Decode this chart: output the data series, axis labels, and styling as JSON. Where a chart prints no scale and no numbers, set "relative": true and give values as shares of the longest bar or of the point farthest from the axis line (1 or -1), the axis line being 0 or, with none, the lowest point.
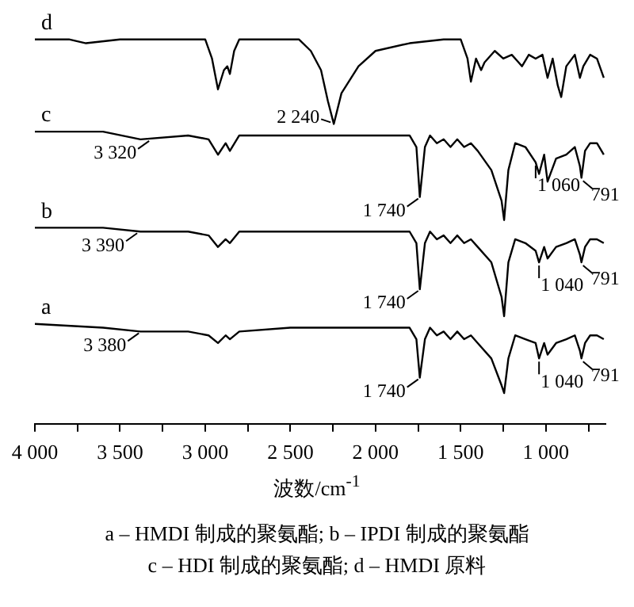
{
  "chart_data": {
    "type": "line",
    "relative": true,
    "xlabel": "波数/cm$^{-1}$",
    "xlim": [
      4000,
      650
    ],
    "xticks": [
      {
        "value": 4000,
        "label": "4 000"
      },
      {
        "value": 3750,
        "label": null
      },
      {
        "value": 3500,
        "label": "3 500"
      },
      {
        "value": 3250,
        "label": null
      },
      {
        "value": 3000,
        "label": "3 000"
      },
      {
        "value": 2750,
        "label": null
      },
      {
        "value": 2500,
        "label": "2 500"
      },
      {
        "value": 2250,
        "label": null
      },
      {
        "value": 2000,
        "label": "2 000"
      },
      {
        "value": 1750,
        "label": null
      },
      {
        "value": 1500,
        "label": "1 500"
      },
      {
        "value": 1250,
        "label": null
      },
      {
        "value": 1000,
        "label": "1 000"
      },
      {
        "value": 750,
        "label": null
      }
    ],
    "x": [
      4000,
      3600,
      3380,
      3100,
      2980,
      2925,
      2880,
      2855,
      2800,
      2500,
      2000,
      1800,
      1760,
      1740,
      1710,
      1680,
      1640,
      1600,
      1560,
      1520,
      1480,
      1440,
      1400,
      1320,
      1260,
      1245,
      1220,
      1180,
      1120,
      1060,
      1040,
      1010,
      990,
      940,
      880,
      830,
      800,
      791,
      770,
      740,
      700,
      660
    ],
    "grid": false,
    "legend": false,
    "marker": "none",
    "line_style": "solid",
    "series": [
      {
        "name": "d",
        "color": "#000000",
        "x": [
          4000,
          3800,
          3700,
          3500,
          3000,
          2960,
          2925,
          2890,
          2870,
          2855,
          2830,
          2800,
          2600,
          2450,
          2380,
          2320,
          2280,
          2245,
          2200,
          2100,
          2000,
          1800,
          1600,
          1500,
          1460,
          1440,
          1410,
          1380,
          1360,
          1300,
          1250,
          1200,
          1160,
          1140,
          1100,
          1060,
          1020,
          990,
          960,
          930,
          910,
          880,
          830,
          800,
          780,
          740,
          700,
          660
        ],
        "values": [
          1,
          1,
          0.99,
          1,
          1,
          0.95,
          0.87,
          0.92,
          0.93,
          0.91,
          0.97,
          1,
          1,
          1,
          0.97,
          0.92,
          0.84,
          0.78,
          0.86,
          0.93,
          0.97,
          0.99,
          1,
          1,
          0.95,
          0.89,
          0.95,
          0.92,
          0.94,
          0.97,
          0.95,
          0.96,
          0.94,
          0.93,
          0.96,
          0.95,
          0.96,
          0.9,
          0.95,
          0.88,
          0.85,
          0.93,
          0.96,
          0.9,
          0.93,
          0.96,
          0.95,
          0.9
        ]
      },
      {
        "name": "c",
        "color": "#000000",
        "values": [
          0.76,
          0.76,
          0.74,
          0.75,
          0.74,
          0.7,
          0.73,
          0.71,
          0.75,
          0.75,
          0.75,
          0.75,
          0.72,
          0.59,
          0.72,
          0.75,
          0.73,
          0.74,
          0.72,
          0.74,
          0.72,
          0.73,
          0.71,
          0.66,
          0.58,
          0.53,
          0.66,
          0.73,
          0.72,
          0.68,
          0.65,
          0.7,
          0.63,
          0.69,
          0.7,
          0.72,
          0.67,
          0.64,
          0.71,
          0.73,
          0.73,
          0.7
        ]
      },
      {
        "name": "b",
        "color": "#000000",
        "values": [
          0.51,
          0.51,
          0.5,
          0.5,
          0.49,
          0.46,
          0.48,
          0.47,
          0.5,
          0.5,
          0.5,
          0.5,
          0.47,
          0.35,
          0.47,
          0.5,
          0.48,
          0.49,
          0.47,
          0.49,
          0.47,
          0.48,
          0.46,
          0.42,
          0.33,
          0.28,
          0.42,
          0.48,
          0.47,
          0.45,
          0.42,
          0.46,
          0.43,
          0.46,
          0.47,
          0.48,
          0.44,
          0.42,
          0.46,
          0.48,
          0.48,
          0.47
        ]
      },
      {
        "name": "a",
        "color": "#000000",
        "values": [
          0.26,
          0.25,
          0.24,
          0.24,
          0.23,
          0.21,
          0.23,
          0.22,
          0.24,
          0.25,
          0.25,
          0.25,
          0.22,
          0.12,
          0.22,
          0.25,
          0.23,
          0.24,
          0.22,
          0.24,
          0.22,
          0.23,
          0.21,
          0.17,
          0.1,
          0.08,
          0.17,
          0.23,
          0.22,
          0.21,
          0.17,
          0.21,
          0.18,
          0.21,
          0.22,
          0.23,
          0.19,
          0.17,
          0.21,
          0.23,
          0.23,
          0.22
        ]
      }
    ],
    "annotations": [
      {
        "text": "2 240",
        "x": 2245,
        "y": 0.78
      },
      {
        "text": "3 320",
        "x": 3320,
        "y": 0.74
      },
      {
        "text": "1 740",
        "x": 1740,
        "y": 0.59
      },
      {
        "text": "1 060",
        "x": 1060,
        "y": 0.68
      },
      {
        "text": "791",
        "x": 791,
        "y": 0.64
      },
      {
        "text": "3 390",
        "x": 3390,
        "y": 0.5
      },
      {
        "text": "1 740",
        "x": 1740,
        "y": 0.35
      },
      {
        "text": "1 040",
        "x": 1040,
        "y": 0.42
      },
      {
        "text": "791",
        "x": 791,
        "y": 0.42
      },
      {
        "text": "3 380",
        "x": 3380,
        "y": 0.24
      },
      {
        "text": "1 740",
        "x": 1740,
        "y": 0.12
      },
      {
        "text": "1 040",
        "x": 1040,
        "y": 0.17
      },
      {
        "text": "791",
        "x": 791,
        "y": 0.17
      },
      "a – HMDI 制成的聚氨酯; b – IPDI 制成的聚氨酯",
      "c – HDI 制成的聚氨酯; d – HMDI 原料"
    ]
  }
}
